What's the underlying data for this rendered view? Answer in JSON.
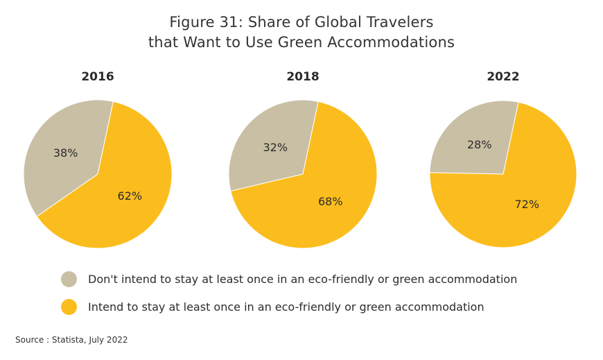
{
  "title": {
    "line1": "Figure 31:  Share of Global Travelers",
    "line2": "that Want to Use Green Accommodations"
  },
  "chart_data": [
    {
      "type": "pie",
      "title": "2016",
      "slices": [
        {
          "label": "Don't intend to stay at least once in an eco-friendly or green accommodation",
          "value": 38,
          "display": "38%",
          "color": "#c9bfa4"
        },
        {
          "label": "Intend to stay at least once in an eco-friendly or green accommodation",
          "value": 62,
          "display": "62%",
          "color": "#fbbd1e"
        }
      ]
    },
    {
      "type": "pie",
      "title": "2018",
      "slices": [
        {
          "label": "Don't intend to stay at least once in an eco-friendly or green accommodation",
          "value": 32,
          "display": "32%",
          "color": "#c9bfa4"
        },
        {
          "label": "Intend to stay at least once in an eco-friendly or green accommodation",
          "value": 68,
          "display": "68%",
          "color": "#fbbd1e"
        }
      ]
    },
    {
      "type": "pie",
      "title": "2022",
      "slices": [
        {
          "label": "Don't intend to stay at least once in an eco-friendly or green accommodation",
          "value": 28,
          "display": "28%",
          "color": "#c9bfa4"
        },
        {
          "label": "Intend to stay at least once in an eco-friendly or green accommodation",
          "value": 72,
          "display": "72%",
          "color": "#fbbd1e"
        }
      ]
    }
  ],
  "legend": [
    {
      "label": "Don't intend to stay at least once in an eco-friendly or green accommodation",
      "color": "#c9bfa4"
    },
    {
      "label": "Intend to stay at least once in an eco-friendly or green accommodation",
      "color": "#fbbd1e"
    }
  ],
  "source": "Source : Statista, July 2022"
}
